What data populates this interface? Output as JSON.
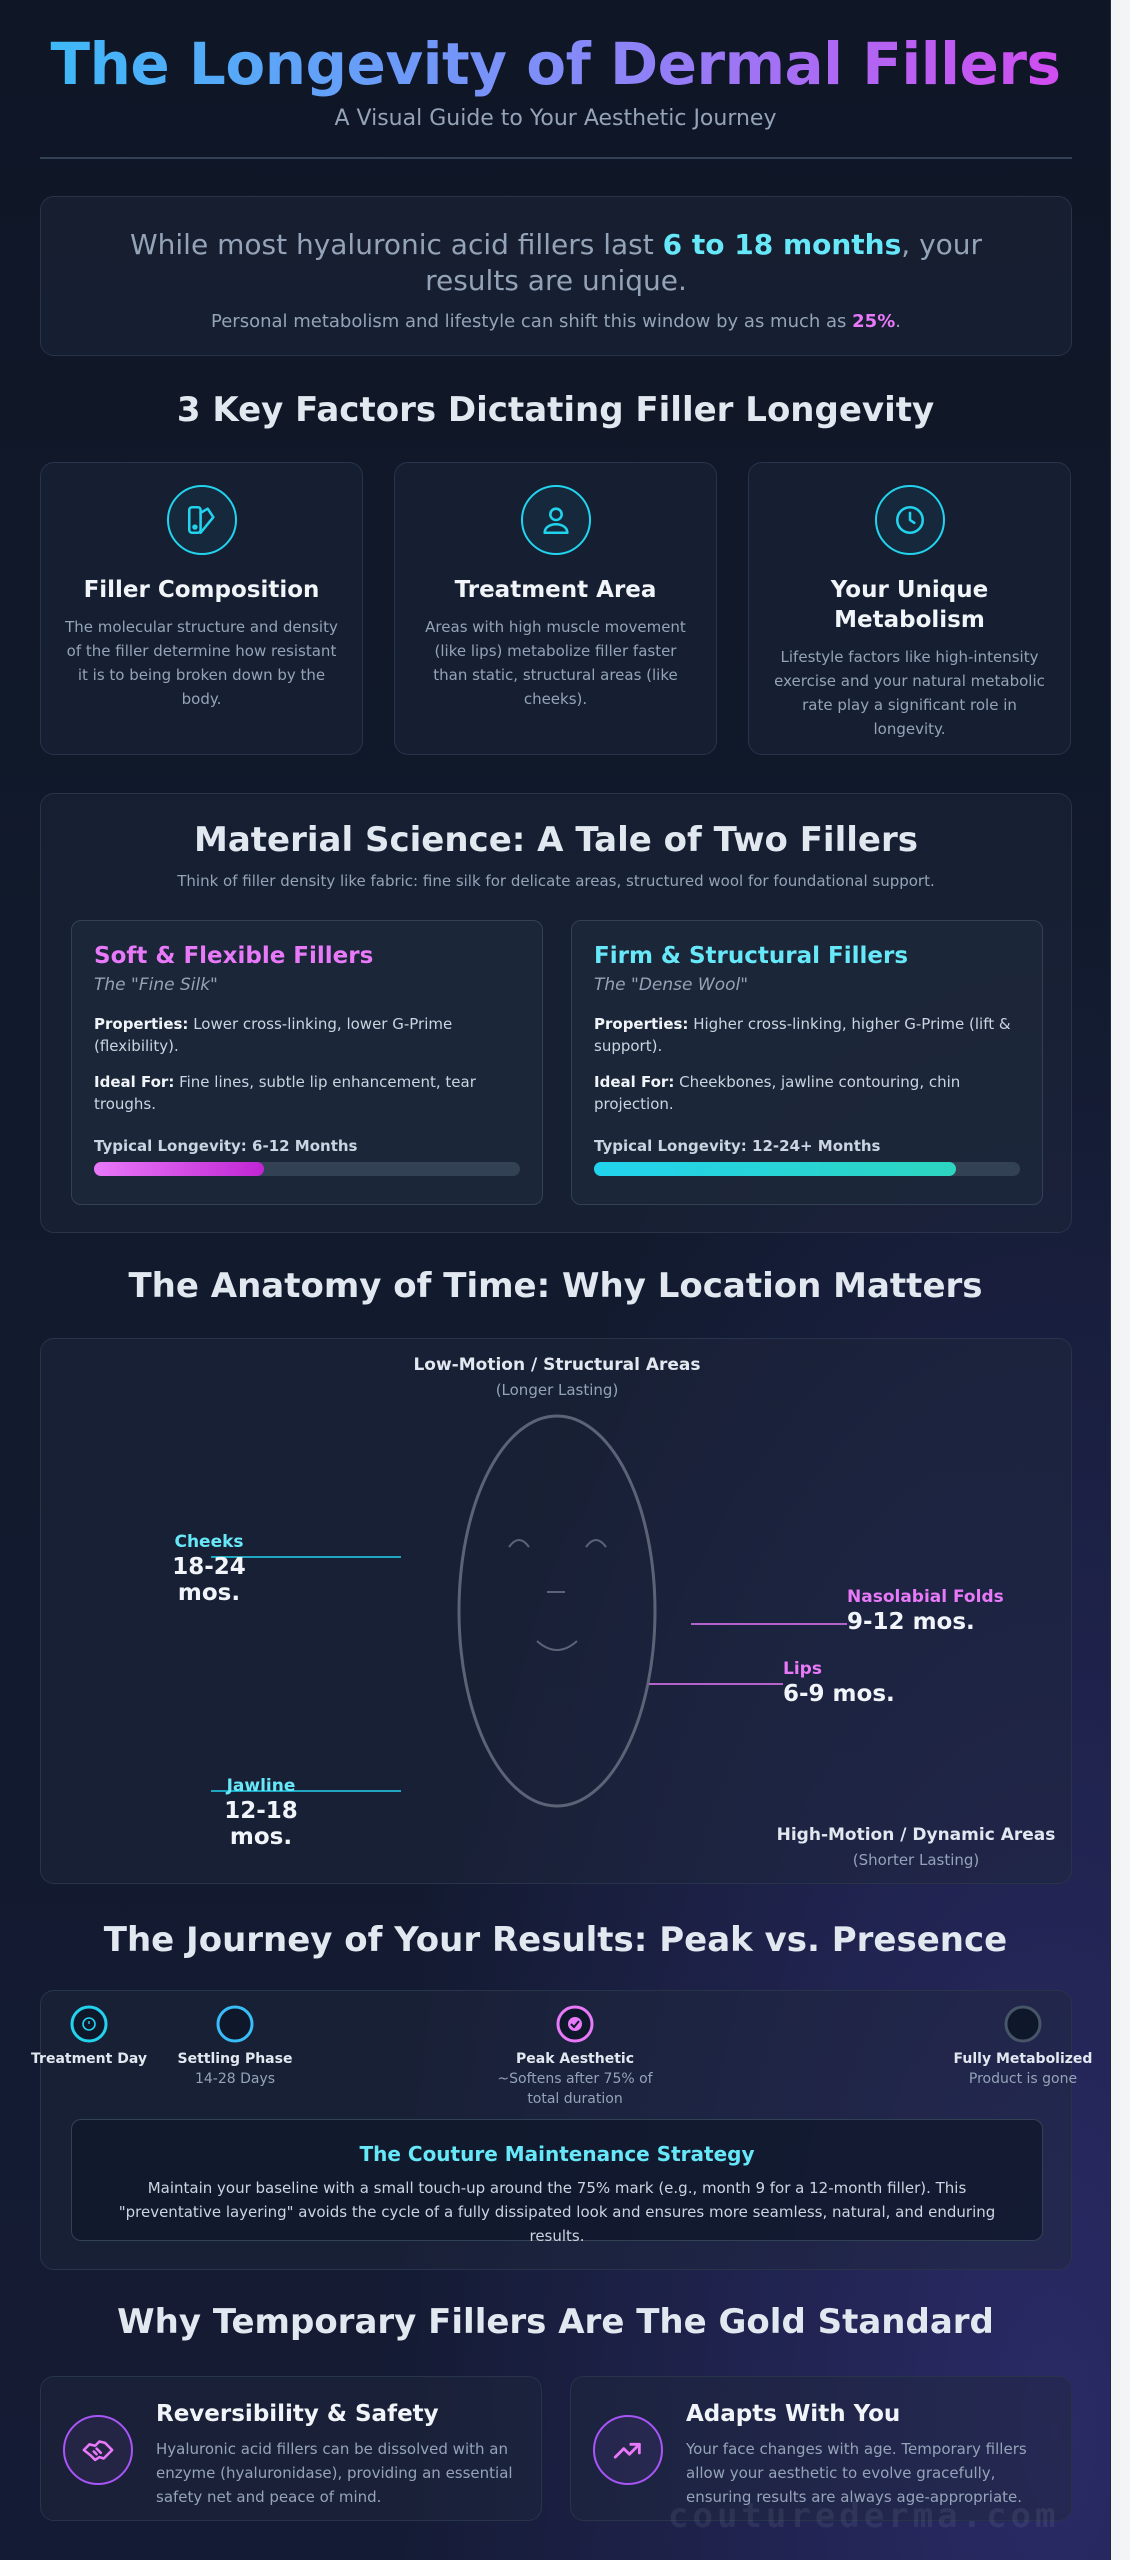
{
  "hero": {
    "title": "The Longevity of Dermal Fillers",
    "subtitle": "A Visual Guide to Your Aesthetic Journey"
  },
  "intro": {
    "prefix": "While most hyaluronic acid fillers last ",
    "highlight": "6 to 18 months",
    "suffix": ", your results are unique.",
    "note_prefix": "Personal metabolism and lifestyle can shift this window by as much as ",
    "note_pct": "25%",
    "note_suffix": "."
  },
  "factors": {
    "title": "3 Key Factors Dictating Filler Longevity",
    "items": [
      {
        "icon": "composition-icon",
        "title": "Filler Composition",
        "body": "The molecular structure and density of the filler determine how resistant it is to being broken down by the body."
      },
      {
        "icon": "user-icon",
        "title": "Treatment Area",
        "body": "Areas with high muscle movement (like lips) metabolize filler faster than static, structural areas (like cheeks)."
      },
      {
        "icon": "clock-icon",
        "title": "Your Unique Metabolism",
        "body": "Lifestyle factors like high-intensity exercise and your natural metabolic rate play a significant role in longevity."
      }
    ]
  },
  "material": {
    "title": "Material Science: A Tale of Two Fillers",
    "subtitle": "Think of filler density like fabric: fine silk for delicate areas, structured wool for foundational support.",
    "soft": {
      "title": "Soft & Flexible Fillers",
      "tag": "The \"Fine Silk\"",
      "properties_label": "Properties:",
      "properties": " Lower cross-linking, lower G-Prime (flexibility).",
      "ideal_label": "Ideal For:",
      "ideal": " Fine lines, subtle lip enhancement, tear troughs.",
      "longevity": "Typical Longevity: 6-12 Months",
      "bar_fraction": 0.4,
      "color": "#e879f9"
    },
    "firm": {
      "title": "Firm & Structural Fillers",
      "tag": "The \"Dense Wool\"",
      "properties_label": "Properties:",
      "properties": " Higher cross-linking, higher G-Prime (lift & support).",
      "ideal_label": "Ideal For:",
      "ideal": " Cheekbones, jawline contouring, chin projection.",
      "longevity": "Typical Longevity: 12-24+ Months",
      "bar_fraction": 0.85,
      "color": "#22d3ee"
    }
  },
  "anatomy": {
    "title": "The Anatomy of Time: Why Location Matters",
    "low_head": "Low-Motion / Structural Areas",
    "low_sub": "(Longer Lasting)",
    "high_head": "High-Motion / Dynamic Areas",
    "high_sub": "(Shorter Lasting)",
    "zones": {
      "cheeks": {
        "name": "Cheeks",
        "value": "18-24 mos."
      },
      "jawline": {
        "name": "Jawline",
        "value": "12-18 mos."
      },
      "nasolabial": {
        "name": "Nasolabial Folds",
        "value": "9-12 mos."
      },
      "lips": {
        "name": "Lips",
        "value": "6-9 mos."
      }
    }
  },
  "journey": {
    "title": "The Journey of Your Results: Peak vs. Presence",
    "milestones": [
      {
        "label": "Treatment Day",
        "detail": ""
      },
      {
        "label": "Settling Phase",
        "detail": "14-28 Days"
      },
      {
        "label": "Peak Aesthetic",
        "detail": "~Softens after 75% of total duration"
      },
      {
        "label": "Fully Metabolized",
        "detail": "Product is gone"
      }
    ],
    "strategy_title": "The Couture Maintenance Strategy",
    "strategy_body": "Maintain your baseline with a small touch-up around the 75% mark (e.g., month 9 for a 12-month filler). This \"preventative layering\" avoids the cycle of a fully dissipated look and ensures more seamless, natural, and enduring results."
  },
  "gold": {
    "title": "Why Temporary Fillers Are The Gold Standard",
    "items": [
      {
        "icon": "handshake-icon",
        "title": "Reversibility & Safety",
        "body": "Hyaluronic acid fillers can be dissolved with an enzyme (hyaluronidase), providing an essential safety net and peace of mind."
      },
      {
        "icon": "trending-up-icon",
        "title": "Adapts With You",
        "body": "Your face changes with age. Temporary fillers allow your aesthetic to evolve gracefully, ensuring results are always age-appropriate."
      }
    ]
  },
  "watermark": "couturederma.com"
}
